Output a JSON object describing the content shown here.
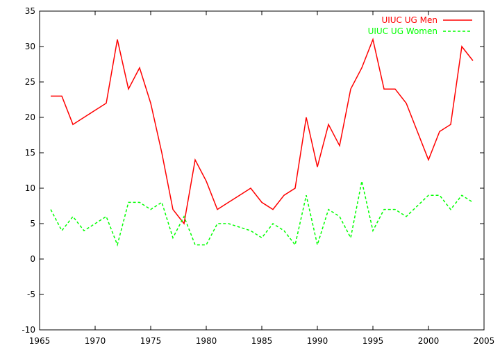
{
  "chart_data": {
    "type": "line",
    "x": [
      1966,
      1967,
      1968,
      1969,
      1970,
      1971,
      1972,
      1973,
      1974,
      1975,
      1976,
      1977,
      1978,
      1979,
      1980,
      1981,
      1982,
      1983,
      1984,
      1985,
      1986,
      1987,
      1988,
      1989,
      1990,
      1991,
      1992,
      1993,
      1994,
      1995,
      1996,
      1997,
      1998,
      1999,
      2000,
      2001,
      2002,
      2003,
      2004
    ],
    "series": [
      {
        "name": "UIUC UG Men",
        "color": "#ff0000",
        "dash": "solid",
        "values": [
          23,
          23,
          19,
          20,
          21,
          22,
          31,
          24,
          27,
          22,
          15,
          7,
          5,
          14,
          11,
          7,
          8,
          9,
          10,
          8,
          7,
          9,
          10,
          20,
          13,
          19,
          16,
          24,
          27,
          31,
          24,
          24,
          22,
          18,
          14,
          18,
          19,
          30,
          28
        ]
      },
      {
        "name": "UIUC UG Women",
        "color": "#00ff00",
        "dash": "dashed",
        "values": [
          7,
          4,
          6,
          4,
          5,
          6,
          2,
          8,
          8,
          7,
          8,
          3,
          6,
          2,
          2,
          5,
          5,
          4.5,
          4,
          3,
          5,
          4,
          2,
          9,
          2,
          7,
          6,
          3,
          11,
          4,
          7,
          7,
          6,
          7.5,
          9,
          9,
          7,
          9,
          8
        ]
      }
    ],
    "xlim": [
      1965,
      2005
    ],
    "xticks": [
      1965,
      1970,
      1975,
      1980,
      1985,
      1990,
      1995,
      2000,
      2005
    ],
    "ylim": [
      -10,
      35
    ],
    "yticks": [
      -10,
      -5,
      0,
      5,
      10,
      15,
      20,
      25,
      30,
      35
    ],
    "legend": "top-right",
    "grid": false
  }
}
